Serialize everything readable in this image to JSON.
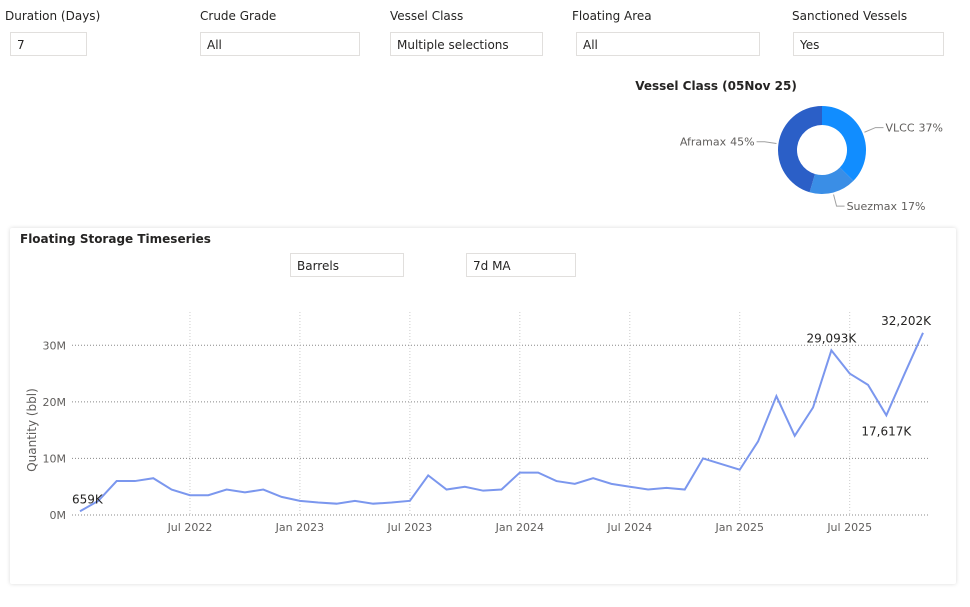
{
  "filters": [
    {
      "label": "Duration (Days)",
      "value": "7"
    },
    {
      "label": "Crude Grade",
      "value": "All"
    },
    {
      "label": "Vessel Class",
      "value": "Multiple selections"
    },
    {
      "label": "Floating Area",
      "value": "All"
    },
    {
      "label": "Sanctioned Vessels",
      "value": "Yes"
    }
  ],
  "chart_data": [
    {
      "type": "donut",
      "title": "Vessel Class (05Nov 25)",
      "categories": [
        "VLCC",
        "Suezmax",
        "Aframax"
      ],
      "values": [
        37,
        17,
        45
      ],
      "value_labels": [
        "37%",
        "17%",
        "45%"
      ],
      "colors": [
        "#118dff",
        "#3a8ee6",
        "#2b5fc7"
      ]
    },
    {
      "type": "line",
      "title": "Floating Storage Timeseries",
      "controls": [
        "Barrels",
        "7d MA"
      ],
      "y_label": "Quantity (bbl)",
      "x": [
        "2022-01",
        "2022-02",
        "2022-03",
        "2022-04",
        "2022-05",
        "2022-06",
        "2022-07",
        "2022-08",
        "2022-09",
        "2022-10",
        "2022-11",
        "2022-12",
        "2023-01",
        "2023-02",
        "2023-03",
        "2023-04",
        "2023-05",
        "2023-06",
        "2023-07",
        "2023-08",
        "2023-09",
        "2023-10",
        "2023-11",
        "2023-12",
        "2024-01",
        "2024-02",
        "2024-03",
        "2024-04",
        "2024-05",
        "2024-06",
        "2024-07",
        "2024-08",
        "2024-09",
        "2024-10",
        "2024-11",
        "2024-12",
        "2025-01",
        "2025-02",
        "2025-03",
        "2025-04",
        "2025-05",
        "2025-06",
        "2025-07",
        "2025-08",
        "2025-09",
        "2025-10",
        "2025-11"
      ],
      "series": [
        {
          "name": "Quantity (bbl)",
          "color": "#7b97ee",
          "values": [
            659000,
            2500000,
            6000000,
            6000000,
            6500000,
            4500000,
            3500000,
            3500000,
            4500000,
            4000000,
            4500000,
            3200000,
            2500000,
            2200000,
            2000000,
            2500000,
            2000000,
            2200000,
            2500000,
            7000000,
            4500000,
            5000000,
            4300000,
            4500000,
            7500000,
            7500000,
            6000000,
            5500000,
            6500000,
            5500000,
            5000000,
            4500000,
            4800000,
            4500000,
            10000000,
            9000000,
            8000000,
            13000000,
            21000000,
            14000000,
            19000000,
            29093000,
            25000000,
            23000000,
            17617000,
            25000000,
            32202000
          ],
          "value_labels": [
            "659K",
            null,
            null,
            null,
            null,
            null,
            null,
            null,
            null,
            null,
            null,
            null,
            null,
            null,
            null,
            null,
            null,
            null,
            null,
            null,
            null,
            null,
            null,
            null,
            null,
            null,
            null,
            null,
            null,
            null,
            null,
            null,
            null,
            null,
            null,
            null,
            null,
            null,
            null,
            null,
            null,
            "29,093K",
            null,
            null,
            "17,617K",
            null,
            "32,202K"
          ]
        }
      ],
      "xlim": [
        "2022-01",
        "2025-11"
      ],
      "xticks": [
        {
          "value": "2022-07",
          "label": "Jul 2022"
        },
        {
          "value": "2023-01",
          "label": "Jan 2023"
        },
        {
          "value": "2023-07",
          "label": "Jul 2023"
        },
        {
          "value": "2024-01",
          "label": "Jan 2024"
        },
        {
          "value": "2024-07",
          "label": "Jul 2024"
        },
        {
          "value": "2025-01",
          "label": "Jan 2025"
        },
        {
          "value": "2025-07",
          "label": "Jul 2025"
        }
      ],
      "ylim": [
        0,
        38000000
      ],
      "yticks": [
        {
          "value": 0,
          "label": "0M"
        },
        {
          "value": 10000000,
          "label": "10M"
        },
        {
          "value": 20000000,
          "label": "20M"
        },
        {
          "value": 30000000,
          "label": "30M"
        }
      ],
      "grid": true
    }
  ]
}
